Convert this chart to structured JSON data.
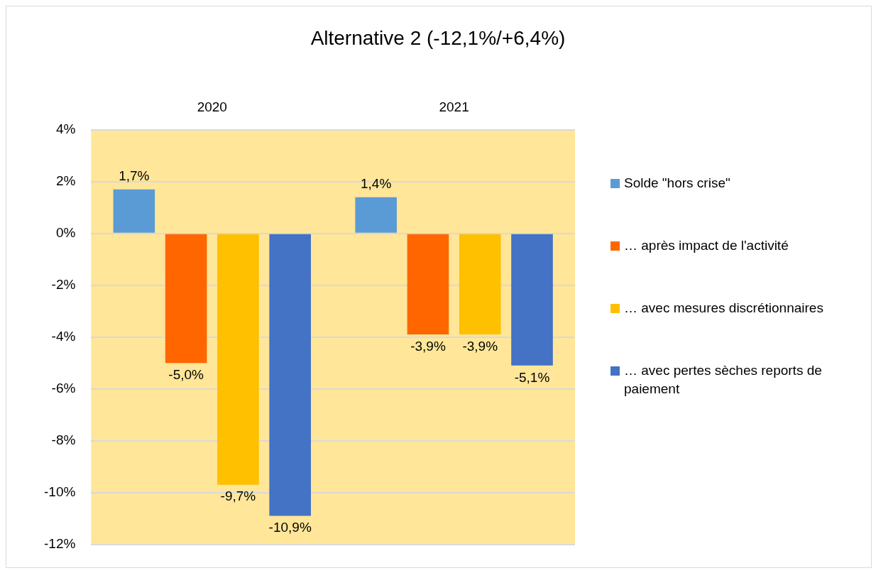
{
  "chart_data": {
    "type": "bar",
    "title": "Alternative 2 (-12,1%/+6,4%)",
    "categories": [
      "2020",
      "2021"
    ],
    "series": [
      {
        "name": "Solde \"hors crise\"",
        "color": "#5b9bd5",
        "values": [
          1.7,
          1.4
        ],
        "value_labels": [
          "1,7%",
          "1,4%"
        ]
      },
      {
        "name": "… après impact de l'activité",
        "color": "#ff6600",
        "values": [
          -5.0,
          -3.9
        ],
        "value_labels": [
          "-5,0%",
          "-3,9%"
        ]
      },
      {
        "name": "… avec mesures discrétionnaires",
        "color": "#ffc000",
        "values": [
          -9.7,
          -3.9
        ],
        "value_labels": [
          "-9,7%",
          "-3,9%"
        ]
      },
      {
        "name": "… avec pertes sèches reports de paiement",
        "color": "#4472c4",
        "values": [
          -10.9,
          -5.1
        ],
        "value_labels": [
          "-10,9%",
          "-5,1%"
        ]
      }
    ],
    "ylim": [
      -12,
      4
    ],
    "yticks": [
      {
        "value": -12,
        "label": "-12%"
      },
      {
        "value": -10,
        "label": "-10%"
      },
      {
        "value": -8,
        "label": "-8%"
      },
      {
        "value": -6,
        "label": "-6%"
      },
      {
        "value": -4,
        "label": "-4%"
      },
      {
        "value": -2,
        "label": "-2%"
      },
      {
        "value": 0,
        "label": "0%"
      },
      {
        "value": 2,
        "label": "2%"
      },
      {
        "value": 4,
        "label": "4%"
      }
    ],
    "grid": "y",
    "legend": "right"
  }
}
